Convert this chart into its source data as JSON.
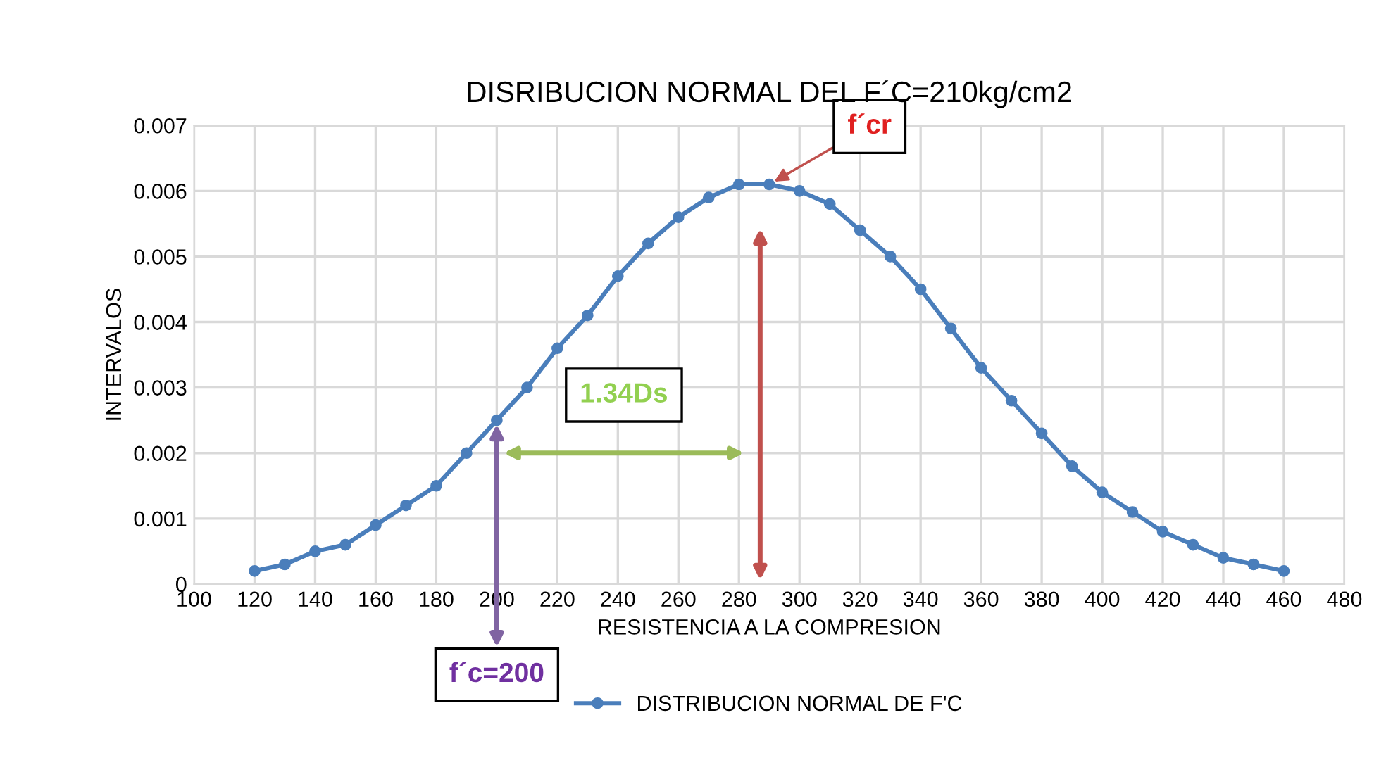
{
  "chart_data": {
    "type": "line",
    "title": "DISRIBUCION NORMAL DEL F´C=210kg/cm2",
    "xlabel": "RESISTENCIA A LA COMPRESION",
    "ylabel": "INTERVALOS",
    "x": [
      120,
      130,
      140,
      150,
      160,
      170,
      180,
      190,
      200,
      210,
      220,
      230,
      240,
      250,
      260,
      270,
      280,
      290,
      300,
      310,
      320,
      330,
      340,
      350,
      360,
      370,
      380,
      390,
      400,
      410,
      420,
      430,
      440,
      450,
      460
    ],
    "series": [
      {
        "name": "DISTRIBUCION NORMAL DE F'C",
        "color": "#4a7ebb",
        "values": [
          0.0002,
          0.0003,
          0.0005,
          0.0006,
          0.0009,
          0.0012,
          0.0015,
          0.002,
          0.0025,
          0.003,
          0.0036,
          0.0041,
          0.0047,
          0.0052,
          0.0056,
          0.0059,
          0.0061,
          0.0061,
          0.006,
          0.0058,
          0.0054,
          0.005,
          0.0045,
          0.0039,
          0.0033,
          0.0028,
          0.0023,
          0.0018,
          0.0014,
          0.0011,
          0.0008,
          0.0006,
          0.0004,
          0.0003,
          0.0002
        ]
      }
    ],
    "xlim": [
      100,
      480
    ],
    "xticks": [
      100,
      120,
      140,
      160,
      180,
      200,
      220,
      240,
      260,
      280,
      300,
      320,
      340,
      360,
      380,
      400,
      420,
      440,
      460,
      480
    ],
    "ylim": [
      0,
      0.007
    ],
    "yticks": [
      0,
      0.001,
      0.002,
      0.003,
      0.004,
      0.005,
      0.006,
      0.007
    ],
    "annotations": [
      {
        "text": "f´c=200",
        "x": 200,
        "y": 0.0025
      },
      {
        "text": "f´cr",
        "x": 290,
        "y": 0.0061
      },
      "1.34Ds"
    ],
    "grid": true,
    "legend": "bottom",
    "marker": "circle",
    "line_style": "solid"
  }
}
